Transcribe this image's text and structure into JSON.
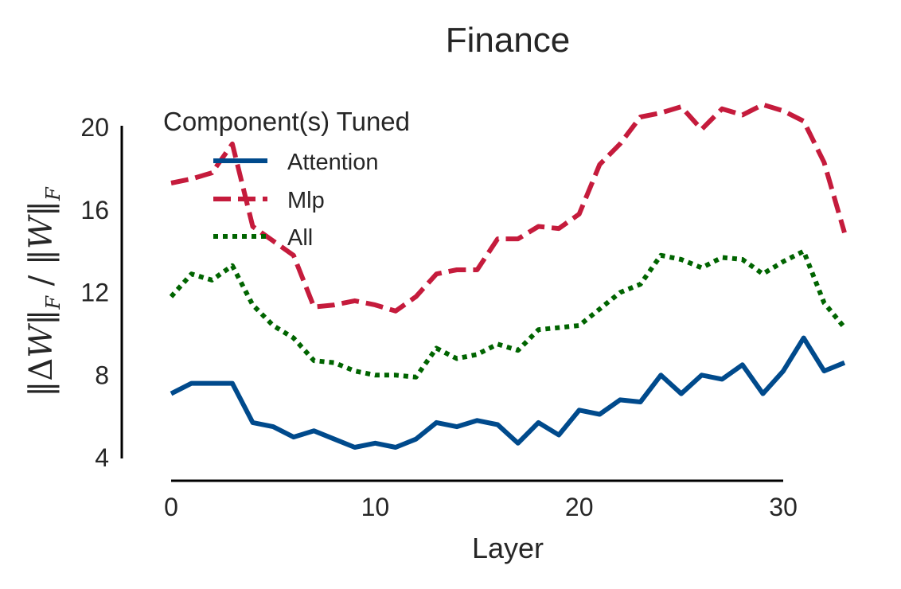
{
  "chart_data": {
    "type": "line",
    "title": "Finance",
    "xlabel": "Layer",
    "ylabel_parts": [
      "‖Δ",
      "W",
      "‖",
      "F",
      " / ‖",
      "W",
      "‖",
      "F"
    ],
    "xlim": [
      0,
      33
    ],
    "ylim": [
      4,
      20
    ],
    "xticks": [
      0,
      10,
      20,
      30
    ],
    "yticks": [
      4,
      8,
      12,
      16,
      20
    ],
    "grid": false,
    "legend_title": "Component(s) Tuned",
    "legend_position": "upper-left",
    "x": [
      0,
      1,
      2,
      3,
      4,
      5,
      6,
      7,
      8,
      9,
      10,
      11,
      12,
      13,
      14,
      15,
      16,
      17,
      18,
      19,
      20,
      21,
      22,
      23,
      24,
      25,
      26,
      27,
      28,
      29,
      30,
      31,
      32,
      33
    ],
    "series": [
      {
        "name": "Attention",
        "color": "#004a8c",
        "dash": "solid",
        "values": [
          7.1,
          7.6,
          7.6,
          7.6,
          5.7,
          5.5,
          5.0,
          5.3,
          4.9,
          4.5,
          4.7,
          4.5,
          4.9,
          5.7,
          5.5,
          5.8,
          5.6,
          4.7,
          5.7,
          5.1,
          6.3,
          6.1,
          6.8,
          6.7,
          8.0,
          7.1,
          8.0,
          7.8,
          8.5,
          7.1,
          8.2,
          9.8,
          8.2,
          8.6
        ]
      },
      {
        "name": "Mlp",
        "color": "#c51b3c",
        "dash": "dashed",
        "values": [
          17.3,
          17.5,
          17.8,
          19.2,
          15.2,
          14.5,
          13.8,
          11.3,
          11.4,
          11.6,
          11.4,
          11.1,
          11.8,
          12.9,
          13.1,
          13.1,
          14.6,
          14.6,
          15.2,
          15.1,
          15.8,
          18.2,
          19.2,
          20.5,
          20.7,
          21.0,
          19.9,
          20.9,
          20.6,
          21.1,
          20.8,
          20.3,
          18.3,
          14.9
        ]
      },
      {
        "name": "All",
        "color": "#006400",
        "dash": "dotted",
        "values": [
          11.8,
          12.9,
          12.6,
          13.3,
          11.4,
          10.4,
          9.8,
          8.7,
          8.6,
          8.2,
          8.0,
          8.0,
          7.9,
          9.3,
          8.8,
          9.0,
          9.5,
          9.2,
          10.2,
          10.3,
          10.4,
          11.2,
          12.0,
          12.4,
          13.8,
          13.6,
          13.2,
          13.7,
          13.6,
          12.9,
          13.5,
          14.0,
          11.5,
          10.3
        ]
      }
    ]
  }
}
